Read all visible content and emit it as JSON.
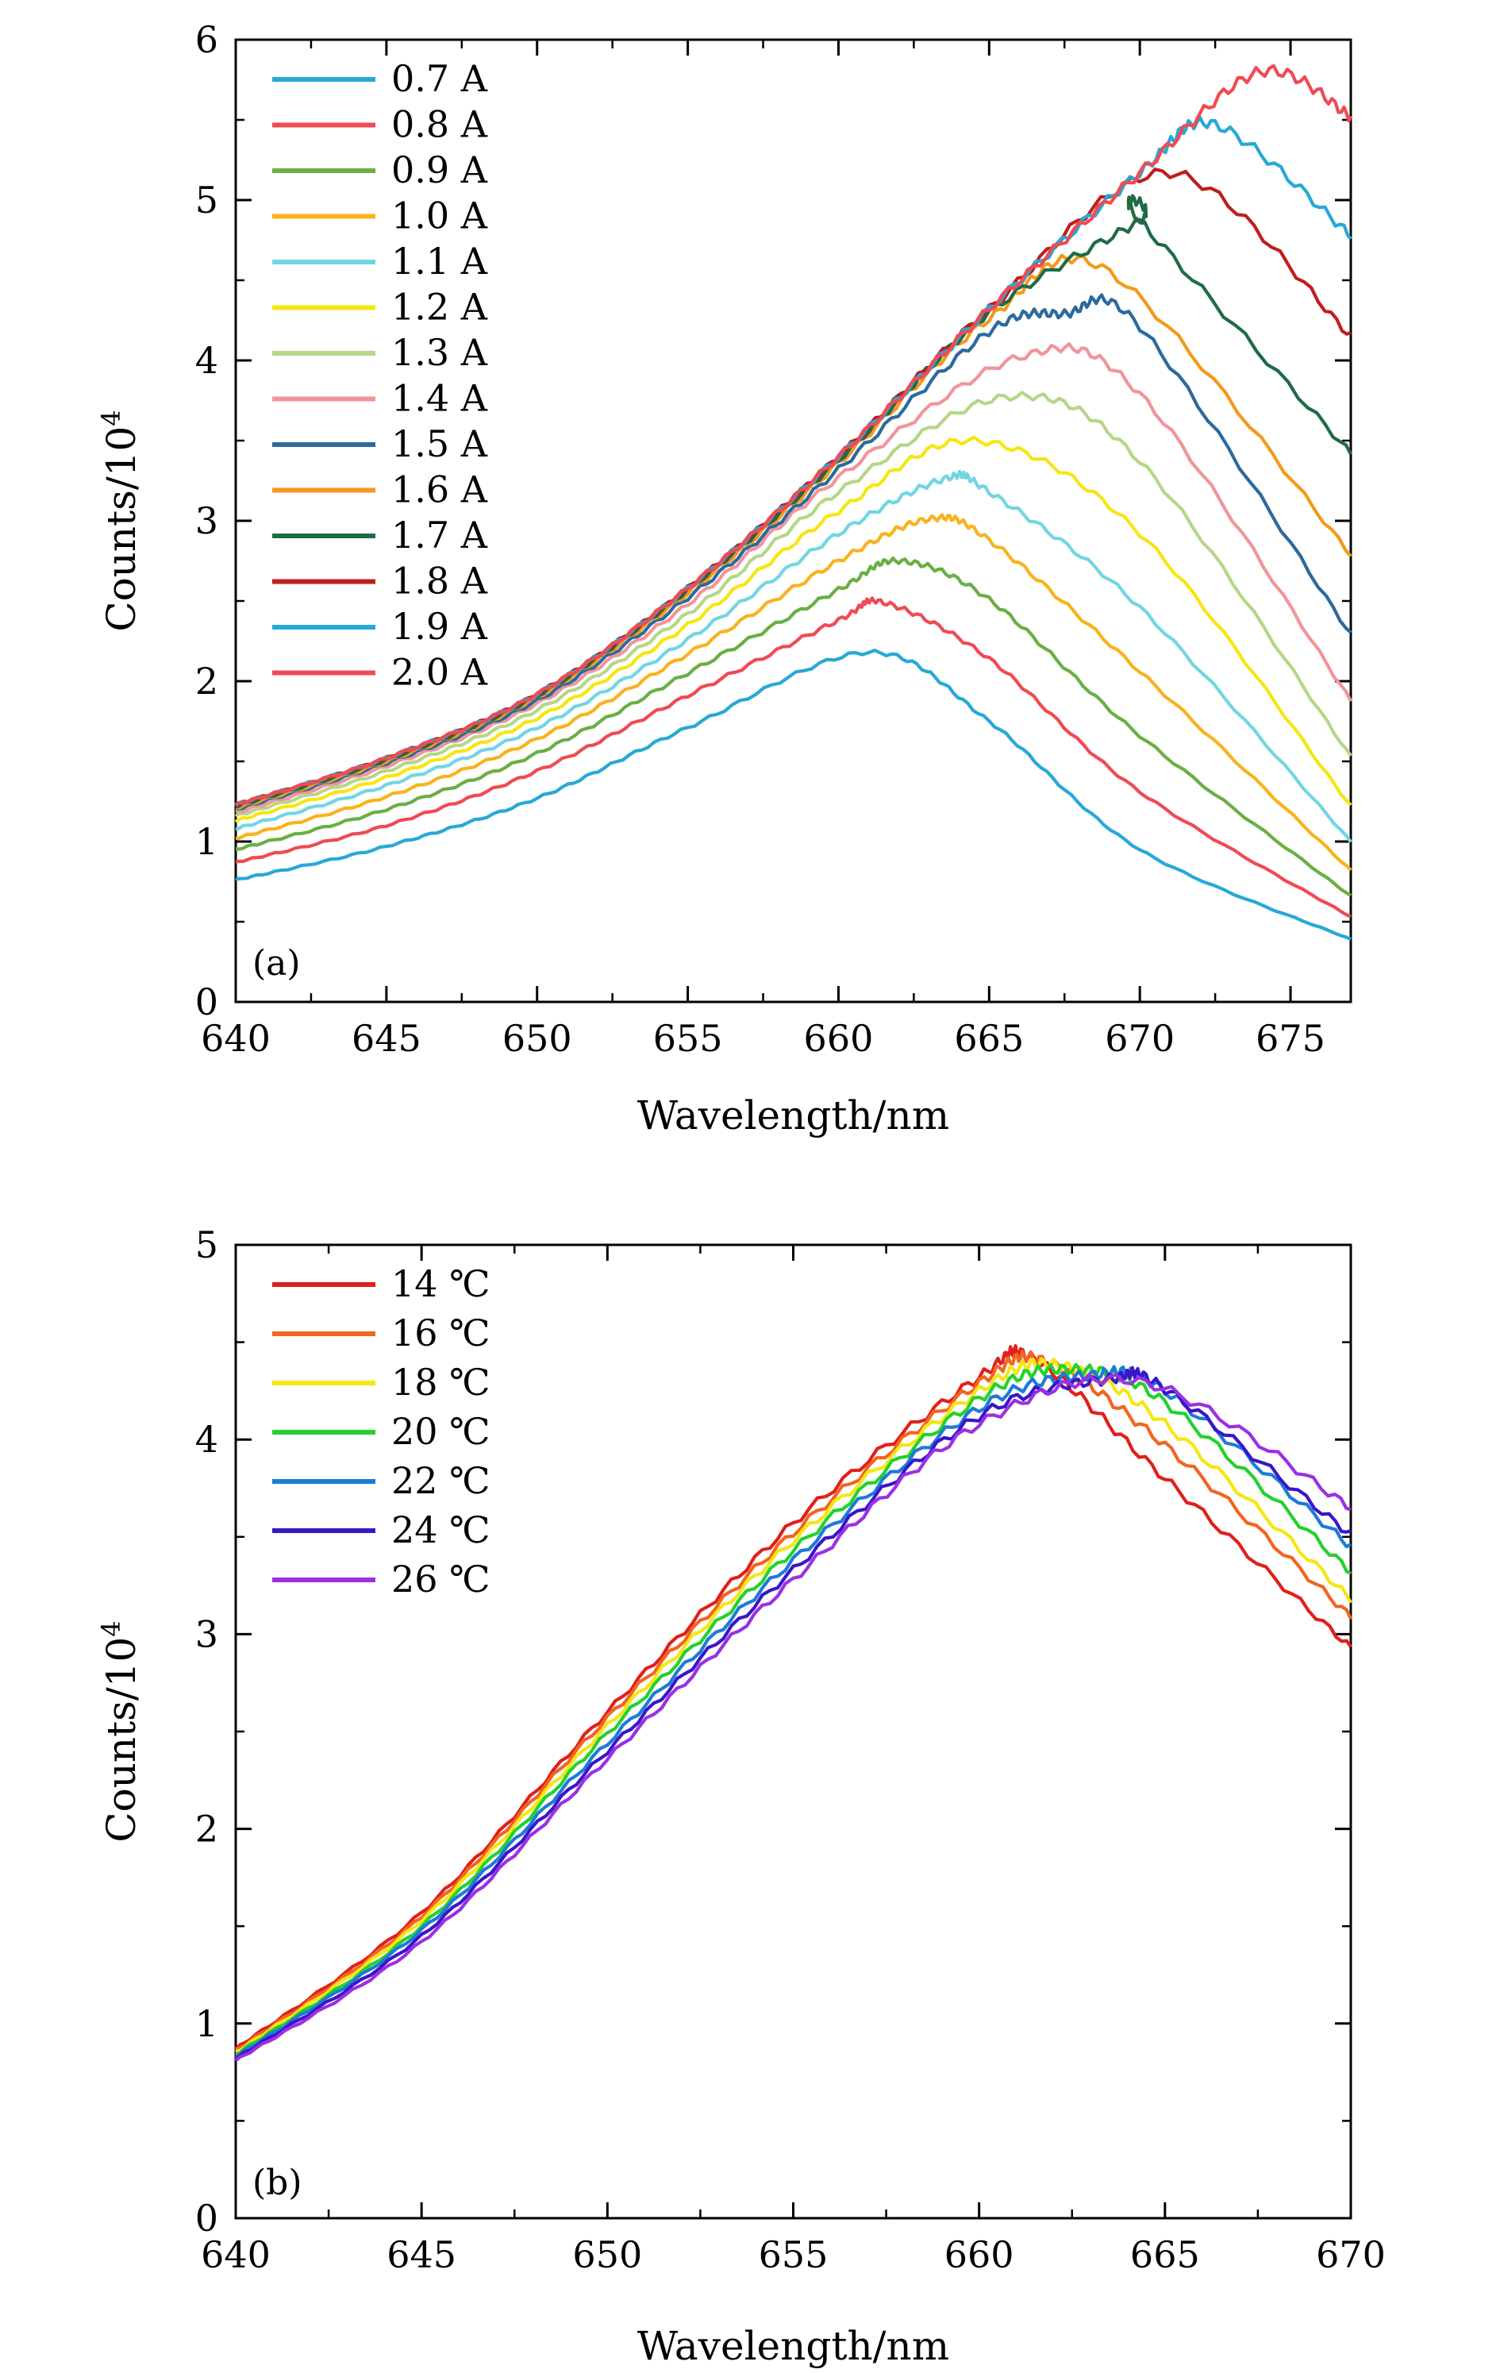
{
  "chart_data": [
    {
      "panel_label": "(a)",
      "type": "line",
      "xlabel": "Wavelength/nm",
      "ylabel_base": "Counts/10",
      "ylabel_sup": "4",
      "xlim": [
        640,
        677
      ],
      "ylim": [
        0,
        6
      ],
      "xticks": [
        640,
        645,
        650,
        655,
        660,
        665,
        670,
        675
      ],
      "yticks": [
        0,
        1,
        2,
        3,
        4,
        5,
        6
      ],
      "legend_position": "top-left",
      "x": [
        640,
        645,
        650,
        655,
        660,
        665,
        670,
        677
      ],
      "series": [
        {
          "name": "0.7 A",
          "color": "#27a9d6",
          "peak": [
            661.0,
            2.18
          ],
          "values": [
            0.76,
            0.97,
            1.27,
            1.71,
            2.12,
            1.75,
            0.95,
            0.39
          ]
        },
        {
          "name": "0.8 A",
          "color": "#ef4b53",
          "peak": [
            661.5,
            2.49
          ],
          "values": [
            0.87,
            1.1,
            1.44,
            1.91,
            2.38,
            2.14,
            1.31,
            0.53
          ]
        },
        {
          "name": "0.9 A",
          "color": "#6aaf44",
          "peak": [
            662.0,
            2.75
          ],
          "values": [
            0.95,
            1.2,
            1.55,
            2.05,
            2.57,
            2.51,
            1.66,
            0.66
          ]
        },
        {
          "name": "1.0 A",
          "color": "#f8b31d",
          "peak": [
            663.0,
            3.01
          ],
          "values": [
            1.02,
            1.28,
            1.64,
            2.17,
            2.75,
            2.88,
            2.06,
            0.82
          ]
        },
        {
          "name": "1.1 A",
          "color": "#72d6e2",
          "peak": [
            663.5,
            3.26
          ],
          "values": [
            1.08,
            1.35,
            1.71,
            2.26,
            2.92,
            3.18,
            2.46,
            1.0
          ]
        },
        {
          "name": "1.2 A",
          "color": "#f6e612",
          "peak": [
            664.5,
            3.5
          ],
          "values": [
            1.13,
            1.4,
            1.77,
            2.35,
            3.06,
            3.47,
            2.92,
            1.22
          ]
        },
        {
          "name": "1.3 A",
          "color": "#b5d788",
          "peak": [
            665.5,
            3.77
          ],
          "values": [
            1.16,
            1.44,
            1.82,
            2.42,
            3.18,
            3.76,
            3.37,
            1.53
          ]
        },
        {
          "name": "1.4 A",
          "color": "#f0959b",
          "peak": [
            666.0,
            4.02
          ],
          "values": [
            1.18,
            1.47,
            1.86,
            2.48,
            3.27,
            4.0,
            3.79,
            1.88
          ]
        },
        {
          "name": "1.5 A",
          "color": "#2b6a9e",
          "peak": [
            667.5,
            4.29
          ],
          "values": [
            1.2,
            1.49,
            1.88,
            2.52,
            3.32,
            4.18,
            4.21,
            2.29
          ]
        },
        {
          "name": "1.6 A",
          "color": "#f39a1a",
          "peak": [
            669.0,
            4.55
          ],
          "values": [
            1.21,
            1.5,
            1.9,
            2.55,
            3.36,
            4.26,
            4.52,
            2.79
          ]
        },
        {
          "name": "1.7 A",
          "color": "#1f6b45",
          "peak": [
            670.0,
            4.87
          ],
          "values": [
            1.22,
            1.51,
            1.91,
            2.57,
            3.38,
            4.3,
            4.87,
            3.42
          ]
        },
        {
          "name": "1.8 A",
          "color": "#bf1e1e",
          "peak": [
            671.0,
            5.17
          ],
          "values": [
            1.23,
            1.52,
            1.92,
            2.58,
            3.4,
            4.32,
            5.14,
            4.15
          ]
        },
        {
          "name": "1.9 A",
          "color": "#27a9d6",
          "peak": [
            672.5,
            5.47
          ],
          "values": [
            1.23,
            1.52,
            1.92,
            2.58,
            3.4,
            4.32,
            5.17,
            4.78
          ]
        },
        {
          "name": "2.0 A",
          "color": "#ef4b53",
          "peak": [
            674.0,
            5.8
          ],
          "values": [
            1.23,
            1.52,
            1.92,
            2.58,
            3.4,
            4.32,
            5.17,
            5.52
          ]
        }
      ]
    },
    {
      "panel_label": "(b)",
      "type": "line",
      "xlabel": "Wavelength/nm",
      "ylabel_base": "Counts/10",
      "ylabel_sup": "4",
      "xlim": [
        640,
        670
      ],
      "ylim": [
        0,
        5
      ],
      "xticks": [
        640,
        645,
        650,
        655,
        660,
        665,
        670
      ],
      "yticks": [
        0,
        1,
        2,
        3,
        4,
        5
      ],
      "legend_position": "top-left",
      "x": [
        640,
        645,
        650,
        655,
        660,
        665,
        670
      ],
      "series": [
        {
          "name": "14 ℃",
          "color": "#e0201b",
          "peak": [
            661.5,
            4.41
          ],
          "values": [
            0.87,
            1.57,
            2.6,
            3.57,
            4.32,
            3.8,
            2.93
          ]
        },
        {
          "name": "16 ℃",
          "color": "#f26522",
          "peak": [
            661.8,
            4.4
          ],
          "values": [
            0.86,
            1.55,
            2.57,
            3.52,
            4.29,
            3.97,
            3.09
          ]
        },
        {
          "name": "18 ℃",
          "color": "#f6e612",
          "peak": [
            662.2,
            4.38
          ],
          "values": [
            0.85,
            1.53,
            2.53,
            3.48,
            4.25,
            4.08,
            3.18
          ]
        },
        {
          "name": "20 ℃",
          "color": "#25d12c",
          "peak": [
            662.5,
            4.36
          ],
          "values": [
            0.84,
            1.5,
            2.49,
            3.43,
            4.21,
            4.19,
            3.32
          ]
        },
        {
          "name": "22 ℃",
          "color": "#1d7bd8",
          "peak": [
            663.0,
            4.33
          ],
          "values": [
            0.83,
            1.48,
            2.44,
            3.38,
            4.16,
            4.25,
            3.45
          ]
        },
        {
          "name": "24 ℃",
          "color": "#3a16c9",
          "peak": [
            663.5,
            4.31
          ],
          "values": [
            0.82,
            1.45,
            2.4,
            3.33,
            4.12,
            4.26,
            3.51
          ]
        },
        {
          "name": "26 ℃",
          "color": "#9b30e3",
          "peak": [
            664.5,
            4.29
          ],
          "values": [
            0.81,
            1.42,
            2.36,
            3.28,
            4.08,
            4.27,
            3.65
          ]
        }
      ]
    }
  ]
}
